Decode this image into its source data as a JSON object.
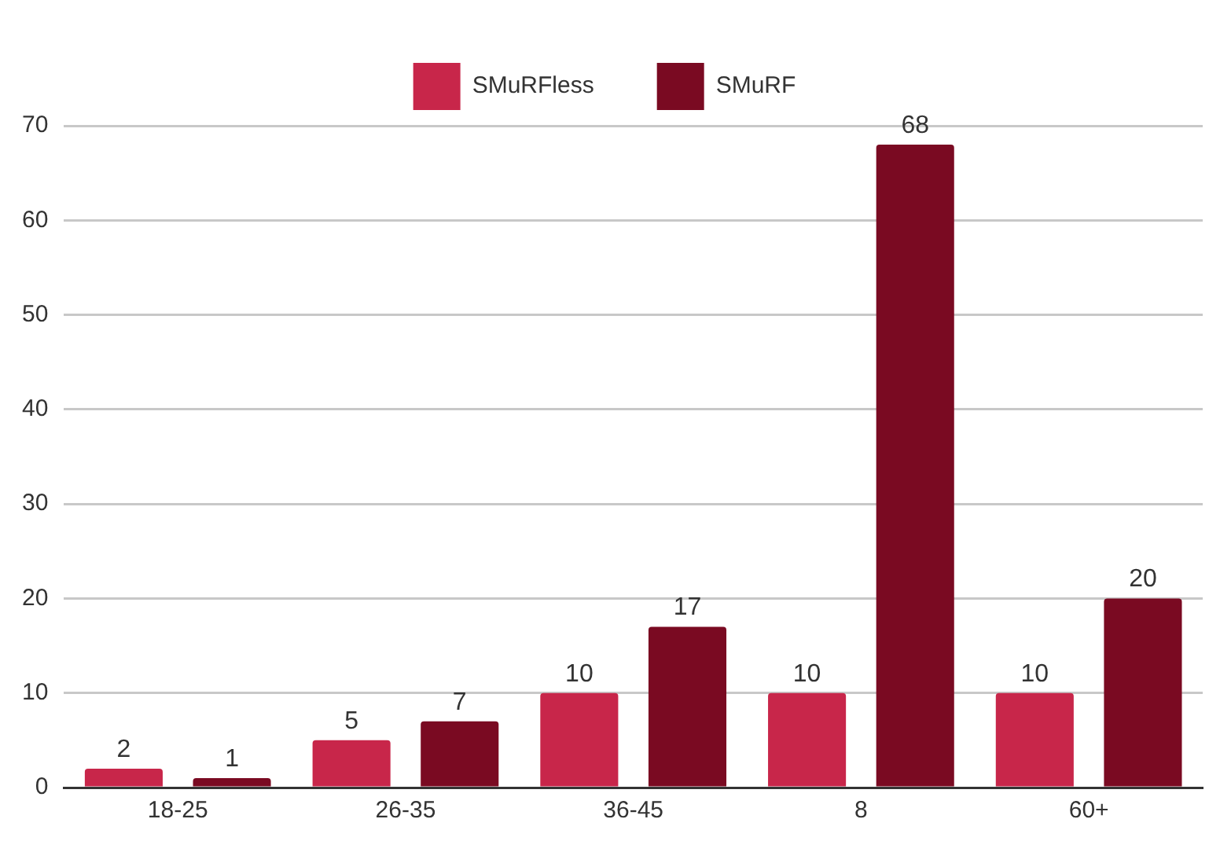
{
  "chart_data": {
    "type": "bar",
    "categories": [
      "18-25",
      "26-35",
      "36-45",
      "8",
      "60+"
    ],
    "series": [
      {
        "name": "SMuRFless",
        "color": "#c8264a",
        "values": [
          2,
          5,
          10,
          10,
          10
        ]
      },
      {
        "name": "SMuRF",
        "color": "#7a0a22",
        "values": [
          1,
          7,
          17,
          68,
          20
        ]
      }
    ],
    "ylim": [
      0,
      70
    ],
    "yticks": [
      0,
      10,
      20,
      30,
      40,
      50,
      60,
      70
    ],
    "grid": "y",
    "legend": "top",
    "data_labels": true
  }
}
